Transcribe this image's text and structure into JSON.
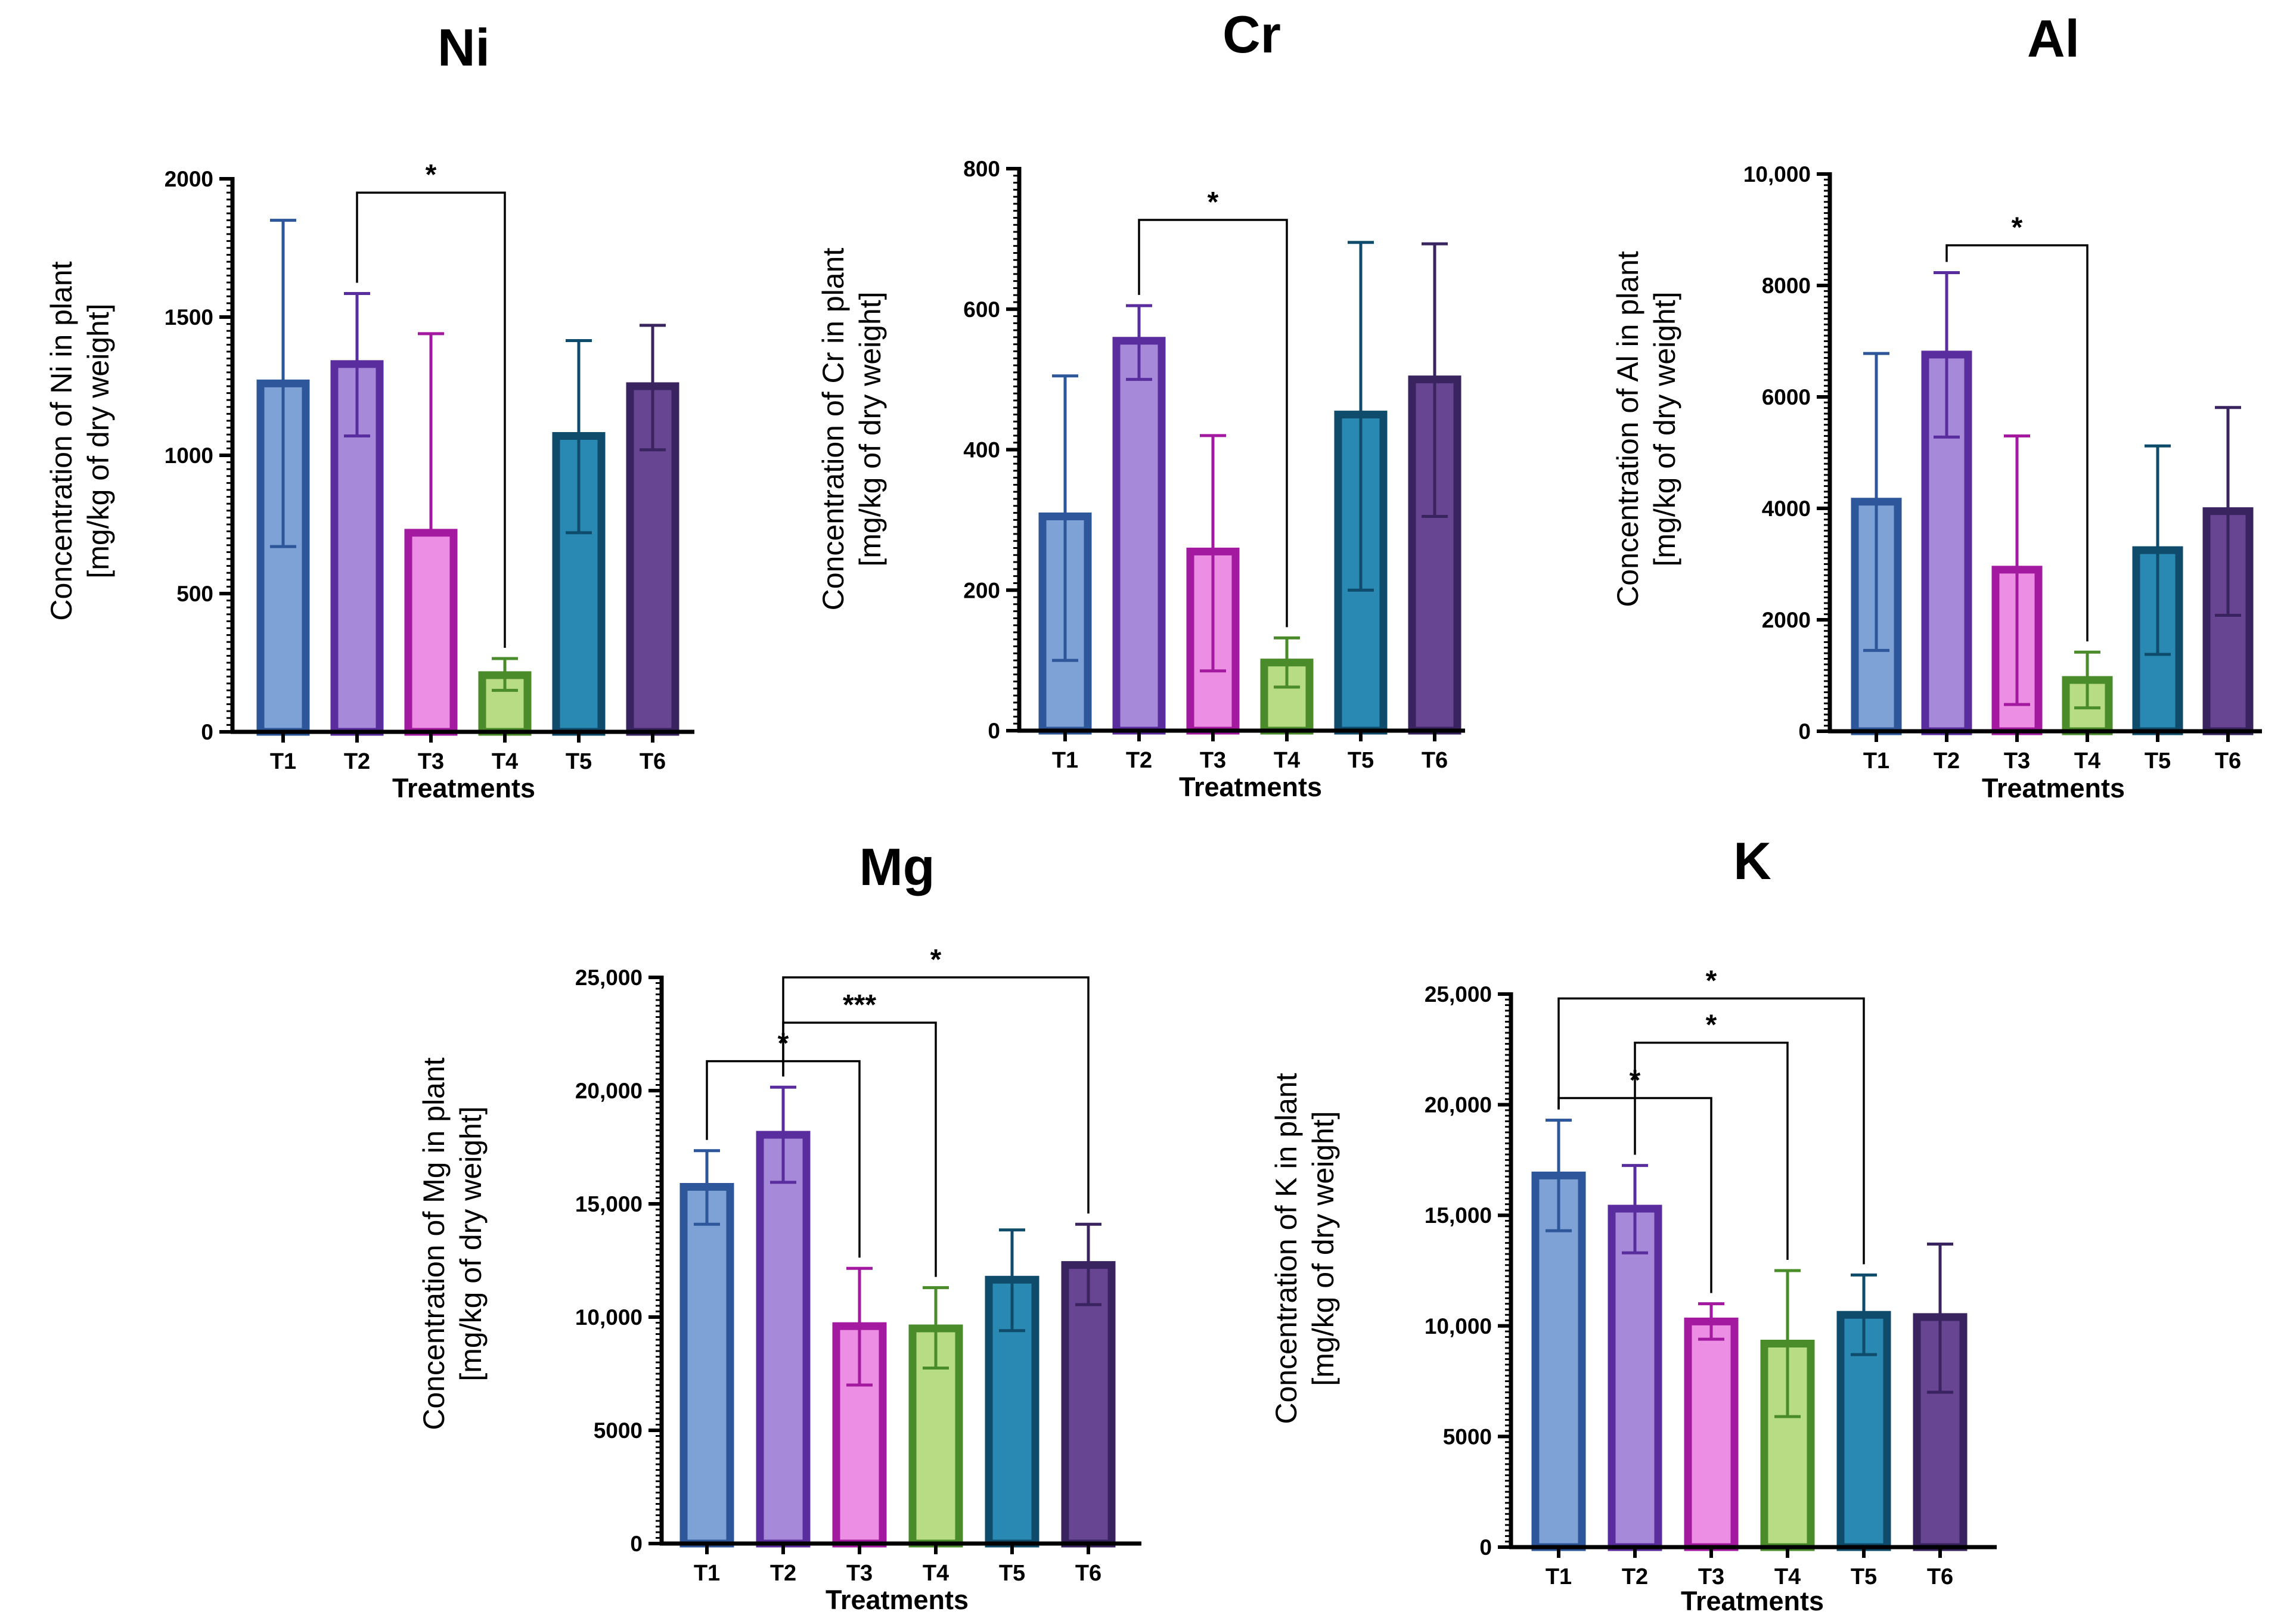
{
  "chart_data": [
    {
      "type": "bar",
      "title": "Ni",
      "xlabel": "Treatments",
      "ylabel": [
        "Concentration of Ni in plant",
        "[mg/kg of dry weight]"
      ],
      "categories": [
        "T1",
        "T2",
        "T3",
        "T4",
        "T5",
        "T6"
      ],
      "values": [
        1260,
        1330,
        720,
        205,
        1070,
        1250
      ],
      "error_high": [
        1850,
        1585,
        1440,
        265,
        1415,
        1470
      ],
      "error_low": [
        670,
        1070,
        720,
        150,
        720,
        1020
      ],
      "ylim": [
        0,
        2000
      ],
      "yticks": [
        0,
        500,
        1000,
        1500,
        2000
      ],
      "ytick_labels": [
        "0",
        "500",
        "1000",
        "1500",
        "2000"
      ],
      "significance": [
        {
          "from": "T2",
          "to": "T4",
          "label": "*",
          "level": 1950
        }
      ],
      "colors": {
        "fill": [
          "#7ea1d6",
          "#a689d8",
          "#ec8fe4",
          "#b7dc84",
          "#2989b2",
          "#674592"
        ],
        "stroke": [
          "#2d579a",
          "#5a2d9e",
          "#a3199f",
          "#4a8c2a",
          "#0f4b6a",
          "#3a2460"
        ]
      }
    },
    {
      "type": "bar",
      "title": "Cr",
      "xlabel": "Treatments",
      "ylabel": [
        "Concentration of Cr in plant",
        "[mg/kg of dry weight]"
      ],
      "categories": [
        "T1",
        "T2",
        "T3",
        "T4",
        "T5",
        "T6"
      ],
      "values": [
        305,
        555,
        255,
        97,
        450,
        500
      ],
      "error_high": [
        505,
        605,
        420,
        132,
        695,
        693
      ],
      "error_low": [
        100,
        500,
        85,
        62,
        200,
        305
      ],
      "ylim": [
        0,
        800
      ],
      "yticks": [
        0,
        200,
        400,
        600,
        800
      ],
      "ytick_labels": [
        "0",
        "200",
        "400",
        "600",
        "800"
      ],
      "significance": [
        {
          "from": "T2",
          "to": "T4",
          "label": "*",
          "level": 727
        }
      ],
      "colors": {
        "fill": [
          "#7ea1d6",
          "#a689d8",
          "#ec8fe4",
          "#b7dc84",
          "#2989b2",
          "#674592"
        ],
        "stroke": [
          "#2d579a",
          "#5a2d9e",
          "#a3199f",
          "#4a8c2a",
          "#0f4b6a",
          "#3a2460"
        ]
      }
    },
    {
      "type": "bar",
      "title": "Al",
      "xlabel": "Treatments",
      "ylabel": [
        "Concentration of Al in plant",
        "[mg/kg of dry weight]"
      ],
      "categories": [
        "T1",
        "T2",
        "T3",
        "T4",
        "T5",
        "T6"
      ],
      "values": [
        4120,
        6760,
        2900,
        920,
        3250,
        3950
      ],
      "error_high": [
        6780,
        8230,
        5300,
        1420,
        5120,
        5810
      ],
      "error_low": [
        1450,
        5280,
        480,
        420,
        1380,
        2080
      ],
      "ylim": [
        0,
        10000
      ],
      "yticks": [
        0,
        2000,
        4000,
        6000,
        8000,
        10000
      ],
      "ytick_labels": [
        "0",
        "2000",
        "4000",
        "6000",
        "8000",
        "10,000"
      ],
      "significance": [
        {
          "from": "T2",
          "to": "T4",
          "label": "*",
          "level": 8720
        }
      ],
      "colors": {
        "fill": [
          "#7ea1d6",
          "#a689d8",
          "#ec8fe4",
          "#b7dc84",
          "#2989b2",
          "#674592"
        ],
        "stroke": [
          "#2d579a",
          "#5a2d9e",
          "#a3199f",
          "#4a8c2a",
          "#0f4b6a",
          "#3a2460"
        ]
      }
    },
    {
      "type": "bar",
      "title": "Mg",
      "xlabel": "Treatments",
      "ylabel": [
        "Concentration of Mg in plant",
        "[mg/kg of dry weight]"
      ],
      "categories": [
        "T1",
        "T2",
        "T3",
        "T4",
        "T5",
        "T6"
      ],
      "values": [
        15750,
        18050,
        9600,
        9500,
        11650,
        12300
      ],
      "error_high": [
        17350,
        20150,
        12150,
        11300,
        13850,
        14100
      ],
      "error_low": [
        14100,
        15950,
        7000,
        7750,
        9400,
        10550
      ],
      "ylim": [
        0,
        25000
      ],
      "yticks": [
        0,
        5000,
        10000,
        15000,
        20000,
        25000
      ],
      "ytick_labels": [
        "0",
        "5000",
        "10,000",
        "15,000",
        "20,000",
        "25,000"
      ],
      "significance": [
        {
          "from": "T1",
          "to": "T3",
          "label": "*",
          "level": 21300
        },
        {
          "from": "T2",
          "to": "T4",
          "label": "***",
          "level": 23000
        },
        {
          "from": "T2",
          "to": "T6",
          "label": "*",
          "level": 25000
        }
      ],
      "colors": {
        "fill": [
          "#7ea1d6",
          "#a689d8",
          "#ec8fe4",
          "#b7dc84",
          "#2989b2",
          "#674592"
        ],
        "stroke": [
          "#2d579a",
          "#5a2d9e",
          "#a3199f",
          "#4a8c2a",
          "#0f4b6a",
          "#3a2460"
        ]
      }
    },
    {
      "type": "bar",
      "title": "K",
      "xlabel": "Treatments",
      "ylabel": [
        "Concentration of K in plant",
        "[mg/kg of dry weight]"
      ],
      "categories": [
        "T1",
        "T2",
        "T3",
        "T4",
        "T5",
        "T6"
      ],
      "values": [
        16800,
        15300,
        10200,
        9200,
        10500,
        10400
      ],
      "error_high": [
        19300,
        17250,
        11000,
        12500,
        12300,
        13700
      ],
      "error_low": [
        14300,
        13300,
        9400,
        5900,
        8700,
        7000
      ],
      "ylim": [
        0,
        25000
      ],
      "yticks": [
        0,
        5000,
        10000,
        15000,
        20000,
        25000
      ],
      "ytick_labels": [
        "0",
        "5000",
        "10,000",
        "15,000",
        "20,000",
        "25,000"
      ],
      "significance": [
        {
          "from": "T1",
          "to": "T3",
          "label": "*",
          "level": 20300
        },
        {
          "from": "T2",
          "to": "T4",
          "label": "*",
          "level": 22800
        },
        {
          "from": "T1",
          "to": "T5",
          "label": "*",
          "level": 24800
        }
      ],
      "colors": {
        "fill": [
          "#7ea1d6",
          "#a689d8",
          "#ec8fe4",
          "#b7dc84",
          "#2989b2",
          "#674592"
        ],
        "stroke": [
          "#2d579a",
          "#5a2d9e",
          "#a3199f",
          "#4a8c2a",
          "#0f4b6a",
          "#3a2460"
        ]
      }
    }
  ]
}
